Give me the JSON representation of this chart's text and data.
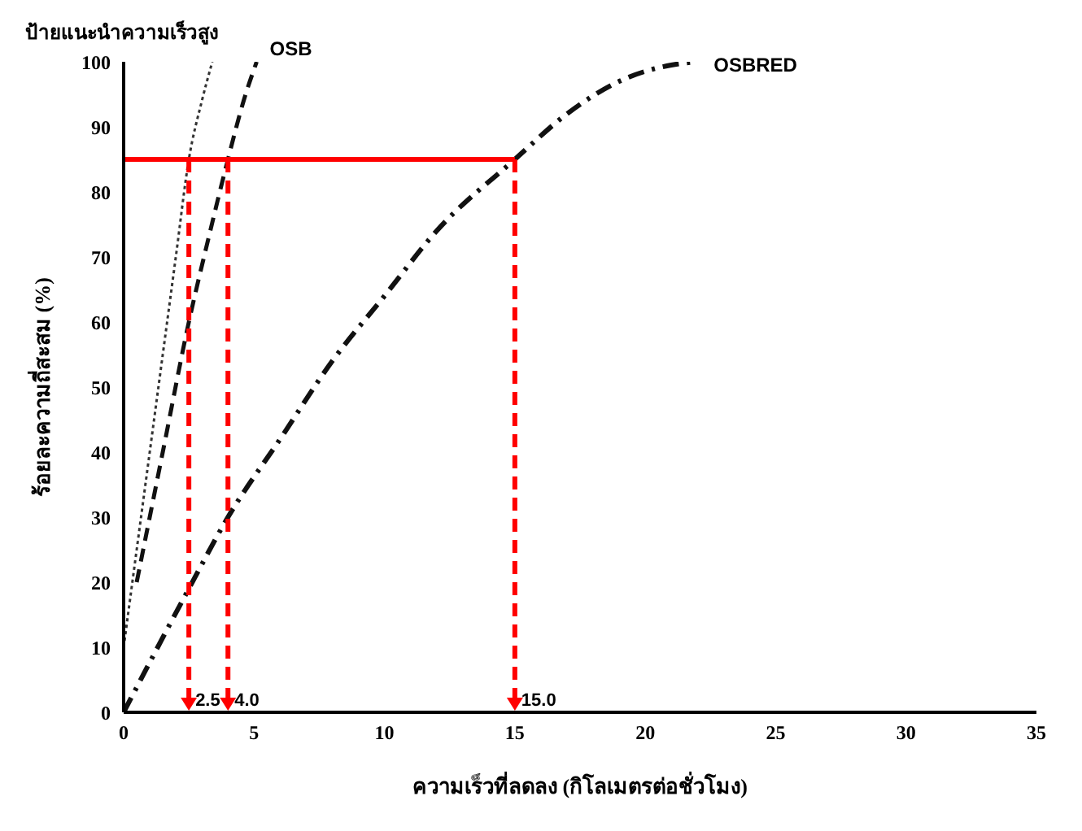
{
  "chart_data": {
    "type": "line",
    "xlabel": "ความเร็วที่ลดลง (กิโลเมตรต่อชั่วโมง)",
    "ylabel": "ร้อยละความถี่สะสม (%)",
    "xlim": [
      0,
      35
    ],
    "xticks": [
      0,
      5,
      10,
      15,
      20,
      25,
      30,
      35
    ],
    "ylim": [
      0,
      100
    ],
    "yticks": [
      0,
      10,
      20,
      30,
      40,
      50,
      60,
      70,
      80,
      90,
      100
    ],
    "grid": false,
    "series": [
      {
        "name": "ป้ายแนะนำความเร็วสูง",
        "color": "#333333",
        "line_style": "dotted",
        "x": [
          0,
          0.5,
          1,
          1.5,
          2,
          2.5,
          3,
          3.4
        ],
        "values": [
          10,
          25,
          40,
          55,
          70,
          85,
          94,
          100
        ]
      },
      {
        "name": "OSB",
        "color": "#111111",
        "line_style": "dashed",
        "x": [
          0.5,
          1.5,
          2.5,
          3.2,
          4,
          4.6,
          5.1
        ],
        "values": [
          20,
          40,
          60,
          72,
          85,
          94,
          100
        ]
      },
      {
        "name": "OSBRED",
        "color": "#111111",
        "line_style": "dashdot",
        "x": [
          0,
          2.5,
          4,
          6,
          8,
          10,
          12,
          15,
          17,
          19,
          21,
          22
        ],
        "values": [
          0,
          19,
          30,
          42,
          54,
          64,
          74,
          85,
          92,
          97,
          99.5,
          100
        ]
      }
    ],
    "ref_lines": [
      {
        "axis": "y",
        "value": 85,
        "color": "#ff0000",
        "line_style": "solid"
      },
      {
        "axis": "x",
        "value": 2.5,
        "label": "2.5",
        "color": "#ff0000",
        "line_style": "dashed"
      },
      {
        "axis": "x",
        "value": 4,
        "label": "4.0",
        "color": "#ff0000",
        "line_style": "dashed"
      },
      {
        "axis": "x",
        "value": 15,
        "label": "15.0",
        "color": "#ff0000",
        "line_style": "dashed"
      }
    ]
  }
}
